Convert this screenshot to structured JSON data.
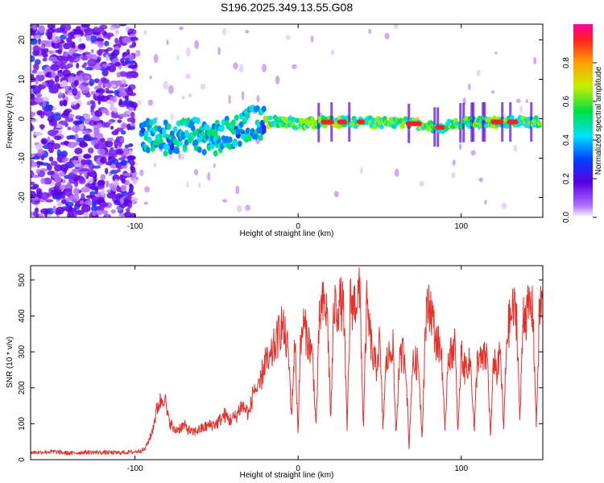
{
  "figure_title": "S196.2025.349.13.55.G08",
  "colors": {
    "snr_line": "#e8302a",
    "axes": "#000000"
  },
  "chart_data": [
    {
      "type": "heatmap",
      "title": "S196.2025.349.13.55.G08",
      "xlabel": "Height of straight line (km)",
      "ylabel": "Frequency (Hz)",
      "xlim": [
        -164,
        150
      ],
      "ylim": [
        -25,
        24
      ],
      "x_ticks": [
        -100,
        0,
        100
      ],
      "y_ticks": [
        -20,
        -10,
        0,
        10,
        20
      ],
      "x_tick_labels": [
        "-100",
        "0",
        "100"
      ],
      "y_tick_labels": [
        "-20",
        "-10",
        "0",
        "10",
        "20"
      ],
      "colorbar": {
        "label": "Normalized spectral amplitude",
        "range": [
          0,
          1
        ],
        "ticks": [
          0.0,
          0.2,
          0.4,
          0.6,
          0.8
        ],
        "tick_labels": [
          "0.0",
          "0.2",
          "0.4",
          "0.6",
          "0.8"
        ]
      },
      "ridge": {
        "x": [
          -96,
          -80,
          -65,
          -50,
          -38,
          -30,
          -20,
          -10,
          0,
          10,
          20,
          30,
          40,
          50,
          60,
          70,
          76,
          82,
          88,
          92,
          100,
          110,
          120,
          130,
          140,
          148
        ],
        "freq_hz": [
          -4,
          -5,
          -4,
          -5,
          -3,
          -1,
          -1,
          -0.5,
          -1.5,
          -1,
          -0.8,
          -0.8,
          -0.8,
          -1,
          -1,
          -1.2,
          -1.5,
          -2,
          -2.2,
          -1.5,
          -1,
          -0.8,
          -0.8,
          -0.8,
          -0.8,
          -0.8
        ]
      },
      "hot_segments": [
        [
          14,
          22
        ],
        [
          24,
          30
        ],
        [
          36,
          41
        ],
        [
          66,
          76
        ],
        [
          84,
          90
        ],
        [
          118,
          126
        ],
        [
          128,
          135
        ]
      ]
    },
    {
      "type": "line",
      "xlabel": "Height of straight line (km)",
      "ylabel": "SNR (10 * v/v)",
      "xlim": [
        -164,
        150
      ],
      "ylim": [
        0,
        540
      ],
      "x_ticks": [
        -100,
        0,
        100
      ],
      "y_ticks": [
        0,
        100,
        200,
        300,
        400,
        500
      ],
      "x_tick_labels": [
        "-100",
        "0",
        "100"
      ],
      "y_tick_labels": [
        "0",
        "100",
        "200",
        "300",
        "400",
        "500"
      ],
      "series": [
        {
          "name": "SNR",
          "x": [
            -164,
            -150,
            -140,
            -130,
            -120,
            -110,
            -100,
            -94,
            -90,
            -86,
            -82,
            -80,
            -78,
            -76,
            -70,
            -65,
            -60,
            -55,
            -50,
            -45,
            -42,
            -38,
            -35,
            -32,
            -30,
            -27,
            -24,
            -22,
            -20,
            -18,
            -15,
            -13,
            -10,
            -8,
            -6,
            -4,
            -2,
            0,
            1,
            3,
            5,
            7,
            9,
            11,
            13,
            14,
            16,
            18,
            20,
            22,
            24,
            26,
            28,
            30,
            32,
            34,
            36,
            38,
            40,
            42,
            44,
            46,
            48,
            50,
            52,
            54,
            56,
            58,
            60,
            62,
            64,
            66,
            68,
            70,
            72,
            74,
            76,
            78,
            80,
            82,
            84,
            86,
            88,
            90,
            92,
            94,
            96,
            98,
            100,
            102,
            104,
            106,
            108,
            110,
            112,
            114,
            116,
            118,
            120,
            122,
            124,
            126,
            128,
            130,
            132,
            134,
            136,
            138,
            140,
            142,
            144,
            146,
            148,
            150
          ],
          "values": [
            20,
            22,
            18,
            21,
            20,
            19,
            22,
            28,
            70,
            150,
            180,
            120,
            100,
            80,
            95,
            75,
            85,
            95,
            100,
            125,
            110,
            120,
            150,
            140,
            125,
            200,
            190,
            240,
            280,
            260,
            310,
            330,
            380,
            340,
            300,
            120,
            340,
            70,
            280,
            380,
            350,
            320,
            280,
            90,
            380,
            420,
            430,
            400,
            110,
            430,
            420,
            440,
            415,
            80,
            440,
            430,
            450,
            460,
            80,
            430,
            350,
            280,
            260,
            330,
            90,
            270,
            290,
            330,
            70,
            260,
            300,
            280,
            30,
            260,
            270,
            260,
            60,
            370,
            440,
            410,
            340,
            320,
            300,
            70,
            300,
            290,
            340,
            70,
            300,
            250,
            270,
            260,
            80,
            290,
            270,
            280,
            290,
            60,
            290,
            240,
            300,
            80,
            350,
            390,
            420,
            400,
            100,
            420,
            400,
            430,
            410,
            90,
            420,
            450
          ]
        }
      ]
    }
  ]
}
